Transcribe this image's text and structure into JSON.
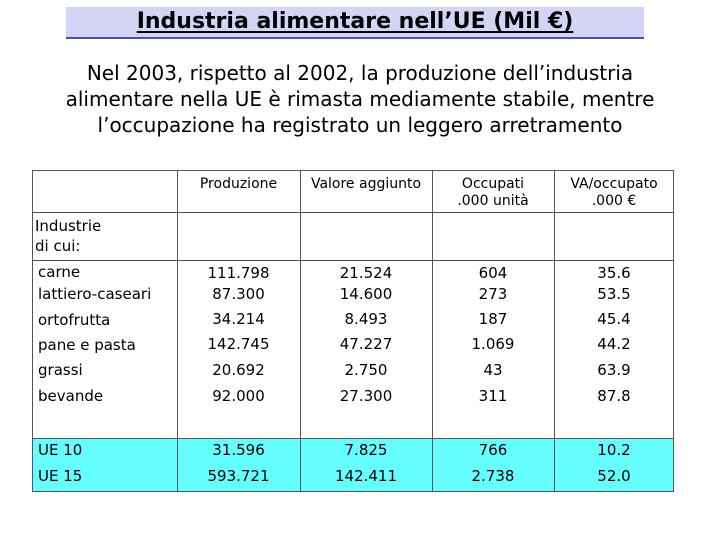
{
  "title": "Industria alimentare nell’UE (Mil €)",
  "subtitle_lines": [
    "Nel 2003, rispetto al 2002, la produzione dell’industria",
    "alimentare nella UE è rimasta mediamente stabile, mentre",
    "l’occupazione ha registrato un leggero arretramento"
  ],
  "table": {
    "headers": {
      "produzione": "Produzione",
      "valore_aggiunto": "Valore aggiunto",
      "occupati_line1": "Occupati",
      "occupati_line2": ".000 unità",
      "va_occupato_line1": "VA/occupato",
      "va_occupato_line2": ".000 €"
    },
    "section_label_line1": "Industrie",
    "section_label_line2": "di cui:",
    "rows": [
      {
        "label": "carne",
        "produzione": "111.798",
        "valore_aggiunto": "21.524",
        "occupati": "604",
        "va_occupato": "35.6"
      },
      {
        "label": "lattiero-caseari",
        "produzione": "87.300",
        "valore_aggiunto": "14.600",
        "occupati": "273",
        "va_occupato": "53.5"
      },
      {
        "label": "ortofrutta",
        "produzione": "34.214",
        "valore_aggiunto": "8.493",
        "occupati": "187",
        "va_occupato": "45.4"
      },
      {
        "label": "pane e pasta",
        "produzione": "142.745",
        "valore_aggiunto": "47.227",
        "occupati": "1.069",
        "va_occupato": "44.2"
      },
      {
        "label": "grassi",
        "produzione": "20.692",
        "valore_aggiunto": "2.750",
        "occupati": "43",
        "va_occupato": "63.9"
      },
      {
        "label": "bevande",
        "produzione": "92.000",
        "valore_aggiunto": "27.300",
        "occupati": "311",
        "va_occupato": "87.8"
      }
    ],
    "totals": [
      {
        "label": "UE 10",
        "produzione": "31.596",
        "valore_aggiunto": "7.825",
        "occupati": "766",
        "va_occupato": "10.2"
      },
      {
        "label": "UE 15",
        "produzione": "593.721",
        "valore_aggiunto": "142.411",
        "occupati": "2.738",
        "va_occupato": "52.0"
      }
    ]
  },
  "colors": {
    "title_background": "#d4d4f7",
    "totals_background": "#66ffff"
  }
}
